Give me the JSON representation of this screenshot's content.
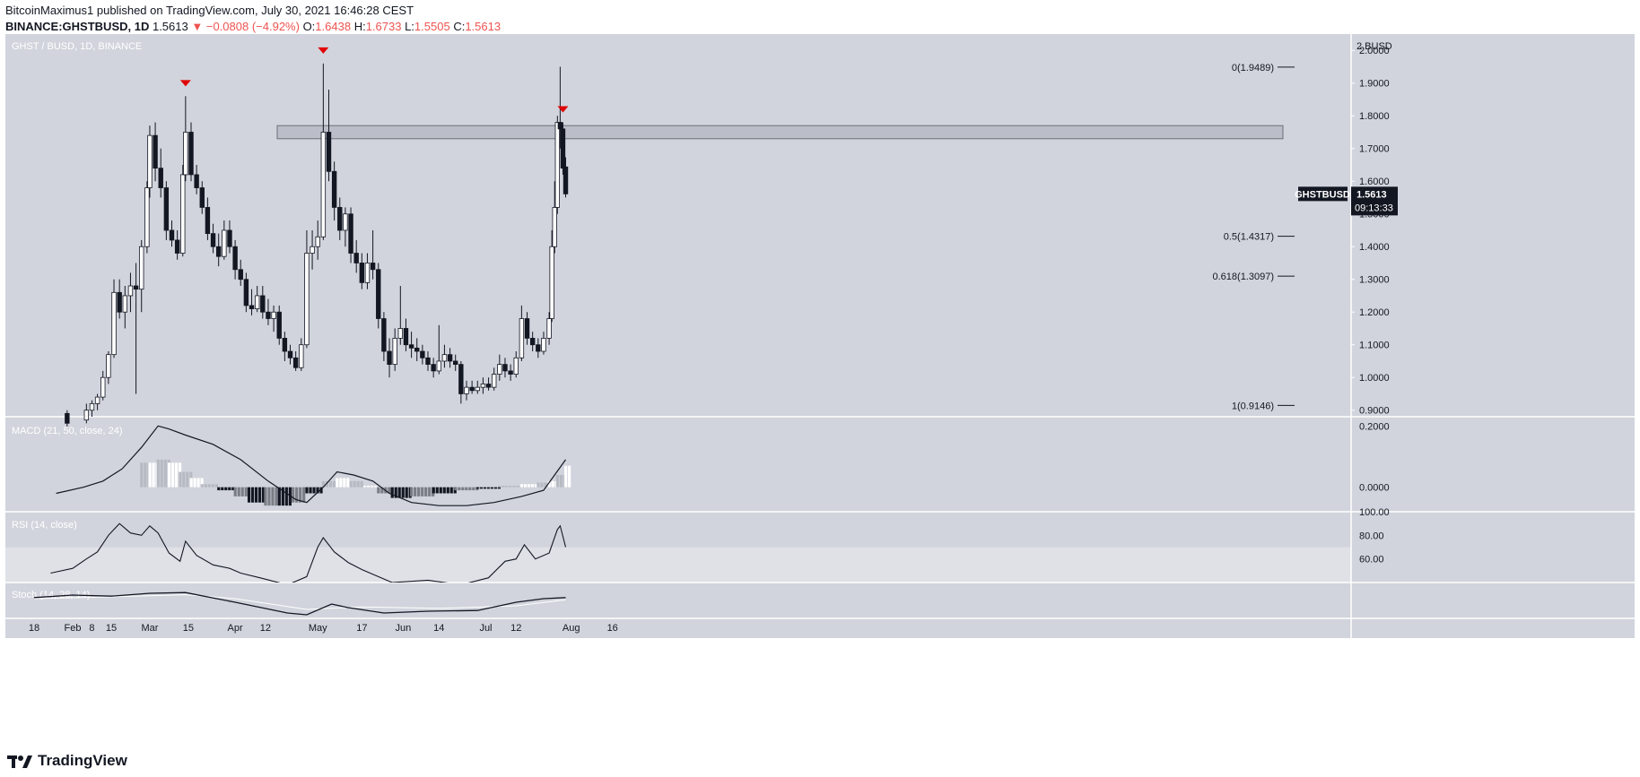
{
  "header": {
    "line1": "BitcoinMaximus1 published on TradingView.com, July 30, 2021 16:46:28 CEST",
    "line2_pair": "BINANCE:GHSTBUSD, 1D",
    "line2_price": "1.5613",
    "line2_change": "−0.0808 (−4.92%)",
    "o_label": "O:",
    "o_value": "1.6438",
    "h_label": "H:",
    "h_value": "1.6733",
    "l_label": "L:",
    "l_value": "1.5505",
    "c_label": "C:",
    "c_value": "1.5613"
  },
  "footer": {
    "brand": "TradingView"
  },
  "colors": {
    "panel_bg": "#d1d4dc",
    "rsi_band": "#dfe1e7",
    "candle_up": "#ffffff",
    "candle_down": "#131722",
    "marker": "#e00000",
    "price_tag": "#131722"
  },
  "chart_data": {
    "type": "candlestick",
    "title": "GHST / BUSD, 1D, BINANCE",
    "ylabel": "2 BUSD",
    "y_ticks": [
      "2.0000",
      "1.9000",
      "1.8000",
      "1.7000",
      "1.6000",
      "1.5000",
      "1.4000",
      "1.3000",
      "1.2000",
      "1.1000",
      "1.0000",
      "0.9000"
    ],
    "ylim": [
      0.88,
      2.05
    ],
    "x_ticks": [
      "18",
      "Feb",
      "8",
      "15",
      "Mar",
      "15",
      "Apr",
      "12",
      "May",
      "17",
      "Jun",
      "14",
      "Jul",
      "12",
      "Aug",
      "16"
    ],
    "x_tick_dates": [
      "2021-01-18",
      "2021-02-01",
      "2021-02-08",
      "2021-02-15",
      "2021-03-01",
      "2021-03-15",
      "2021-04-01",
      "2021-04-12",
      "2021-05-01",
      "2021-05-17",
      "2021-06-01",
      "2021-06-14",
      "2021-07-01",
      "2021-07-12",
      "2021-08-01",
      "2021-08-16"
    ],
    "last_price_label": "GHSTBUSD",
    "last_price": "1.5613",
    "countdown": "09:13:33",
    "resistance_zone": [
      1.73,
      1.77
    ],
    "top_markers": [
      "2021-03-14",
      "2021-05-03",
      "2021-07-29"
    ],
    "fib_levels": [
      {
        "label": "0(1.9489)",
        "value": 1.9489
      },
      {
        "label": "0.5(1.4317)",
        "value": 1.4317
      },
      {
        "label": "0.618(1.3097)",
        "value": 1.3097
      },
      {
        "label": "1(0.9146)",
        "value": 0.9146
      }
    ],
    "candles_ohlc": [
      [
        "2021-01-30",
        0.89,
        0.9,
        0.85,
        0.86
      ],
      [
        "2021-02-06",
        0.87,
        0.92,
        0.86,
        0.9
      ],
      [
        "2021-02-08",
        0.9,
        0.93,
        0.88,
        0.92
      ],
      [
        "2021-02-10",
        0.92,
        0.95,
        0.9,
        0.94
      ],
      [
        "2021-02-12",
        0.94,
        1.02,
        0.93,
        1.0
      ],
      [
        "2021-02-14",
        1.0,
        1.08,
        0.98,
        1.07
      ],
      [
        "2021-02-16",
        1.07,
        1.3,
        1.06,
        1.26
      ],
      [
        "2021-02-18",
        1.26,
        1.3,
        1.18,
        1.2
      ],
      [
        "2021-02-20",
        1.2,
        1.28,
        1.15,
        1.25
      ],
      [
        "2021-02-22",
        1.25,
        1.32,
        1.2,
        1.28
      ],
      [
        "2021-02-24",
        1.28,
        1.35,
        0.95,
        1.27
      ],
      [
        "2021-02-26",
        1.27,
        1.42,
        1.2,
        1.4
      ],
      [
        "2021-02-28",
        1.4,
        1.6,
        1.38,
        1.58
      ],
      [
        "2021-03-01",
        1.58,
        1.77,
        1.55,
        1.74
      ],
      [
        "2021-03-03",
        1.74,
        1.78,
        1.6,
        1.64
      ],
      [
        "2021-03-05",
        1.64,
        1.7,
        1.55,
        1.58
      ],
      [
        "2021-03-07",
        1.58,
        1.6,
        1.42,
        1.45
      ],
      [
        "2021-03-09",
        1.45,
        1.48,
        1.4,
        1.42
      ],
      [
        "2021-03-11",
        1.42,
        1.45,
        1.36,
        1.38
      ],
      [
        "2021-03-13",
        1.38,
        1.65,
        1.37,
        1.62
      ],
      [
        "2021-03-14",
        1.62,
        1.86,
        1.6,
        1.75
      ],
      [
        "2021-03-16",
        1.75,
        1.78,
        1.6,
        1.62
      ],
      [
        "2021-03-18",
        1.62,
        1.65,
        1.56,
        1.58
      ],
      [
        "2021-03-20",
        1.58,
        1.6,
        1.5,
        1.52
      ],
      [
        "2021-03-22",
        1.52,
        1.55,
        1.42,
        1.44
      ],
      [
        "2021-03-24",
        1.44,
        1.47,
        1.38,
        1.4
      ],
      [
        "2021-03-26",
        1.4,
        1.44,
        1.34,
        1.37
      ],
      [
        "2021-03-28",
        1.37,
        1.48,
        1.36,
        1.45
      ],
      [
        "2021-03-30",
        1.45,
        1.48,
        1.38,
        1.4
      ],
      [
        "2021-04-01",
        1.4,
        1.42,
        1.3,
        1.33
      ],
      [
        "2021-04-03",
        1.33,
        1.36,
        1.28,
        1.3
      ],
      [
        "2021-04-05",
        1.3,
        1.32,
        1.2,
        1.22
      ],
      [
        "2021-04-07",
        1.22,
        1.27,
        1.19,
        1.21
      ],
      [
        "2021-04-09",
        1.21,
        1.28,
        1.2,
        1.25
      ],
      [
        "2021-04-11",
        1.25,
        1.28,
        1.18,
        1.2
      ],
      [
        "2021-04-13",
        1.2,
        1.24,
        1.16,
        1.18
      ],
      [
        "2021-04-15",
        1.18,
        1.22,
        1.14,
        1.2
      ],
      [
        "2021-04-17",
        1.2,
        1.22,
        1.1,
        1.12
      ],
      [
        "2021-04-19",
        1.12,
        1.14,
        1.05,
        1.08
      ],
      [
        "2021-04-21",
        1.08,
        1.1,
        1.04,
        1.06
      ],
      [
        "2021-04-23",
        1.06,
        1.08,
        1.02,
        1.03
      ],
      [
        "2021-04-25",
        1.03,
        1.12,
        1.02,
        1.1
      ],
      [
        "2021-04-27",
        1.1,
        1.45,
        1.09,
        1.38
      ],
      [
        "2021-04-29",
        1.38,
        1.45,
        1.33,
        1.4
      ],
      [
        "2021-05-01",
        1.4,
        1.48,
        1.36,
        1.43
      ],
      [
        "2021-05-03",
        1.43,
        1.96,
        1.42,
        1.75
      ],
      [
        "2021-05-05",
        1.75,
        1.88,
        1.6,
        1.63
      ],
      [
        "2021-05-07",
        1.63,
        1.66,
        1.48,
        1.52
      ],
      [
        "2021-05-09",
        1.52,
        1.55,
        1.42,
        1.45
      ],
      [
        "2021-05-11",
        1.45,
        1.52,
        1.4,
        1.5
      ],
      [
        "2021-05-13",
        1.5,
        1.52,
        1.35,
        1.38
      ],
      [
        "2021-05-15",
        1.38,
        1.42,
        1.32,
        1.35
      ],
      [
        "2021-05-17",
        1.35,
        1.38,
        1.27,
        1.29
      ],
      [
        "2021-05-19",
        1.29,
        1.38,
        1.27,
        1.35
      ],
      [
        "2021-05-21",
        1.35,
        1.45,
        1.3,
        1.33
      ],
      [
        "2021-05-23",
        1.33,
        1.35,
        1.15,
        1.18
      ],
      [
        "2021-05-25",
        1.18,
        1.2,
        1.05,
        1.08
      ],
      [
        "2021-05-27",
        1.08,
        1.12,
        1.0,
        1.04
      ],
      [
        "2021-05-29",
        1.04,
        1.15,
        1.02,
        1.12
      ],
      [
        "2021-05-31",
        1.12,
        1.28,
        1.1,
        1.15
      ],
      [
        "2021-06-02",
        1.15,
        1.18,
        1.08,
        1.1
      ],
      [
        "2021-06-04",
        1.1,
        1.14,
        1.06,
        1.09
      ],
      [
        "2021-06-06",
        1.09,
        1.12,
        1.05,
        1.08
      ],
      [
        "2021-06-08",
        1.08,
        1.1,
        1.04,
        1.06
      ],
      [
        "2021-06-10",
        1.06,
        1.08,
        1.02,
        1.04
      ],
      [
        "2021-06-12",
        1.04,
        1.06,
        1.0,
        1.02
      ],
      [
        "2021-06-14",
        1.02,
        1.16,
        1.01,
        1.05
      ],
      [
        "2021-06-16",
        1.05,
        1.1,
        1.03,
        1.07
      ],
      [
        "2021-06-18",
        1.07,
        1.09,
        1.03,
        1.05
      ],
      [
        "2021-06-20",
        1.05,
        1.07,
        1.02,
        1.04
      ],
      [
        "2021-06-22",
        1.04,
        1.05,
        0.92,
        0.95
      ],
      [
        "2021-06-24",
        0.95,
        0.99,
        0.93,
        0.97
      ],
      [
        "2021-06-26",
        0.97,
        0.99,
        0.95,
        0.96
      ],
      [
        "2021-06-28",
        0.96,
        0.99,
        0.95,
        0.97
      ],
      [
        "2021-06-30",
        0.97,
        1.0,
        0.95,
        0.98
      ],
      [
        "2021-07-02",
        0.98,
        1.0,
        0.96,
        0.97
      ],
      [
        "2021-07-04",
        0.97,
        1.03,
        0.96,
        1.01
      ],
      [
        "2021-07-06",
        1.01,
        1.07,
        0.99,
        1.04
      ],
      [
        "2021-07-08",
        1.04,
        1.06,
        1.0,
        1.02
      ],
      [
        "2021-07-10",
        1.02,
        1.04,
        0.99,
        1.01
      ],
      [
        "2021-07-12",
        1.01,
        1.08,
        1.0,
        1.06
      ],
      [
        "2021-07-14",
        1.06,
        1.22,
        1.05,
        1.18
      ],
      [
        "2021-07-16",
        1.18,
        1.2,
        1.1,
        1.12
      ],
      [
        "2021-07-18",
        1.12,
        1.14,
        1.08,
        1.1
      ],
      [
        "2021-07-20",
        1.1,
        1.12,
        1.06,
        1.08
      ],
      [
        "2021-07-22",
        1.08,
        1.14,
        1.07,
        1.12
      ],
      [
        "2021-07-24",
        1.12,
        1.2,
        1.1,
        1.18
      ],
      [
        "2021-07-25",
        1.18,
        1.45,
        1.17,
        1.4
      ],
      [
        "2021-07-26",
        1.4,
        1.6,
        1.38,
        1.52
      ],
      [
        "2021-07-27",
        1.52,
        1.8,
        1.5,
        1.78
      ],
      [
        "2021-07-28",
        1.78,
        1.95,
        1.7,
        1.76
      ],
      [
        "2021-07-29",
        1.76,
        1.78,
        1.62,
        1.64
      ],
      [
        "2021-07-30",
        1.6438,
        1.6733,
        1.5505,
        1.5613
      ]
    ],
    "macd": {
      "title": "MACD (21, 50, close, 24)",
      "y_ticks": [
        "0.2000",
        "0.0000"
      ],
      "ylim": [
        -0.08,
        0.23
      ],
      "line": [
        [
          "2021-01-26",
          -0.02
        ],
        [
          "2021-02-05",
          0.0
        ],
        [
          "2021-02-12",
          0.02
        ],
        [
          "2021-02-19",
          0.06
        ],
        [
          "2021-02-26",
          0.13
        ],
        [
          "2021-03-04",
          0.2
        ],
        [
          "2021-03-08",
          0.19
        ],
        [
          "2021-03-14",
          0.17
        ],
        [
          "2021-03-24",
          0.14
        ],
        [
          "2021-04-03",
          0.09
        ],
        [
          "2021-04-13",
          0.02
        ],
        [
          "2021-04-23",
          -0.04
        ],
        [
          "2021-04-27",
          -0.05
        ],
        [
          "2021-05-03",
          0.0
        ],
        [
          "2021-05-08",
          0.05
        ],
        [
          "2021-05-14",
          0.04
        ],
        [
          "2021-05-21",
          0.02
        ],
        [
          "2021-05-27",
          -0.02
        ],
        [
          "2021-06-04",
          -0.05
        ],
        [
          "2021-06-14",
          -0.06
        ],
        [
          "2021-06-24",
          -0.06
        ],
        [
          "2021-07-04",
          -0.05
        ],
        [
          "2021-07-14",
          -0.03
        ],
        [
          "2021-07-22",
          -0.01
        ],
        [
          "2021-07-26",
          0.04
        ],
        [
          "2021-07-30",
          0.09
        ]
      ],
      "histogram": [
        [
          "2021-02-26",
          0.08
        ],
        [
          "2021-03-01",
          0.08
        ],
        [
          "2021-03-04",
          0.09
        ],
        [
          "2021-03-08",
          0.08
        ],
        [
          "2021-03-12",
          0.05
        ],
        [
          "2021-03-16",
          0.03
        ],
        [
          "2021-03-20",
          0.01
        ],
        [
          "2021-03-26",
          -0.01
        ],
        [
          "2021-04-01",
          -0.03
        ],
        [
          "2021-04-06",
          -0.05
        ],
        [
          "2021-04-12",
          -0.06
        ],
        [
          "2021-04-17",
          -0.06
        ],
        [
          "2021-04-22",
          -0.05
        ],
        [
          "2021-04-27",
          -0.02
        ],
        [
          "2021-05-03",
          0.02
        ],
        [
          "2021-05-08",
          0.03
        ],
        [
          "2021-05-13",
          0.02
        ],
        [
          "2021-05-18",
          0.005
        ],
        [
          "2021-05-23",
          -0.02
        ],
        [
          "2021-05-28",
          -0.035
        ],
        [
          "2021-06-04",
          -0.03
        ],
        [
          "2021-06-12",
          -0.02
        ],
        [
          "2021-06-20",
          -0.01
        ],
        [
          "2021-06-28",
          -0.005
        ],
        [
          "2021-07-06",
          0.005
        ],
        [
          "2021-07-14",
          0.01
        ],
        [
          "2021-07-20",
          0.015
        ],
        [
          "2021-07-24",
          0.02
        ],
        [
          "2021-07-27",
          0.04
        ],
        [
          "2021-07-30",
          0.07
        ]
      ]
    },
    "rsi": {
      "title": "RSI (14, close)",
      "y_ticks": [
        "100.00",
        "80.00",
        "60.00"
      ],
      "ylim": [
        40,
        100
      ],
      "band": [
        30,
        70
      ],
      "line": [
        [
          "2021-01-24",
          48
        ],
        [
          "2021-02-01",
          52
        ],
        [
          "2021-02-06",
          60
        ],
        [
          "2021-02-10",
          66
        ],
        [
          "2021-02-14",
          80
        ],
        [
          "2021-02-18",
          90
        ],
        [
          "2021-02-22",
          82
        ],
        [
          "2021-02-26",
          80
        ],
        [
          "2021-03-01",
          88
        ],
        [
          "2021-03-04",
          82
        ],
        [
          "2021-03-08",
          65
        ],
        [
          "2021-03-12",
          58
        ],
        [
          "2021-03-14",
          75
        ],
        [
          "2021-03-18",
          63
        ],
        [
          "2021-03-24",
          55
        ],
        [
          "2021-03-30",
          52
        ],
        [
          "2021-04-03",
          48
        ],
        [
          "2021-04-10",
          44
        ],
        [
          "2021-04-20",
          38
        ],
        [
          "2021-04-27",
          45
        ],
        [
          "2021-05-01",
          70
        ],
        [
          "2021-05-03",
          78
        ],
        [
          "2021-05-07",
          66
        ],
        [
          "2021-05-12",
          57
        ],
        [
          "2021-05-17",
          51
        ],
        [
          "2021-05-22",
          46
        ],
        [
          "2021-05-28",
          40
        ],
        [
          "2021-06-10",
          42
        ],
        [
          "2021-06-22",
          38
        ],
        [
          "2021-07-02",
          44
        ],
        [
          "2021-07-08",
          58
        ],
        [
          "2021-07-12",
          60
        ],
        [
          "2021-07-15",
          72
        ],
        [
          "2021-07-19",
          60
        ],
        [
          "2021-07-24",
          65
        ],
        [
          "2021-07-27",
          85
        ],
        [
          "2021-07-28",
          88
        ],
        [
          "2021-07-30",
          70
        ]
      ]
    },
    "stoch": {
      "title": "Stoch (14, 28, 14)",
      "k_line": [
        [
          "2021-01-18",
          58
        ],
        [
          "2021-02-01",
          65
        ],
        [
          "2021-02-15",
          62
        ],
        [
          "2021-03-01",
          70
        ],
        [
          "2021-03-14",
          72
        ],
        [
          "2021-04-01",
          45
        ],
        [
          "2021-04-20",
          15
        ],
        [
          "2021-04-27",
          10
        ],
        [
          "2021-05-06",
          40
        ],
        [
          "2021-05-12",
          30
        ],
        [
          "2021-05-25",
          15
        ],
        [
          "2021-06-10",
          20
        ],
        [
          "2021-06-28",
          22
        ],
        [
          "2021-07-12",
          45
        ],
        [
          "2021-07-22",
          55
        ],
        [
          "2021-07-30",
          58
        ]
      ],
      "d_line": [
        [
          "2021-01-18",
          55
        ],
        [
          "2021-02-15",
          60
        ],
        [
          "2021-03-14",
          66
        ],
        [
          "2021-04-01",
          55
        ],
        [
          "2021-04-27",
          25
        ],
        [
          "2021-05-17",
          32
        ],
        [
          "2021-06-14",
          28
        ],
        [
          "2021-07-12",
          35
        ],
        [
          "2021-07-30",
          52
        ]
      ]
    }
  }
}
